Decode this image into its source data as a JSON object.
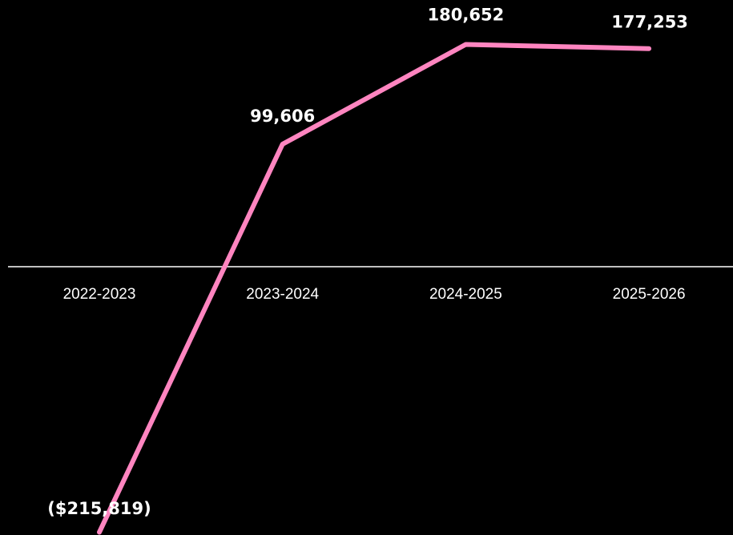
{
  "chart_data": {
    "type": "line",
    "categories": [
      "2022-2023",
      "2023-2024",
      "2024-2025",
      "2025-2026"
    ],
    "series": [
      {
        "values": [
          -215819,
          99606,
          180652,
          177253
        ],
        "data_labels": [
          "($215,819)",
          "99,606",
          "180,652",
          "177,253"
        ],
        "color": "#ff85c0"
      }
    ],
    "title": "",
    "xlabel": "",
    "ylabel": "",
    "ylim": [
      -240000,
      200000
    ],
    "grid": false,
    "legend": "none",
    "zero_line_color": "#ffffff",
    "background": "#000000"
  }
}
